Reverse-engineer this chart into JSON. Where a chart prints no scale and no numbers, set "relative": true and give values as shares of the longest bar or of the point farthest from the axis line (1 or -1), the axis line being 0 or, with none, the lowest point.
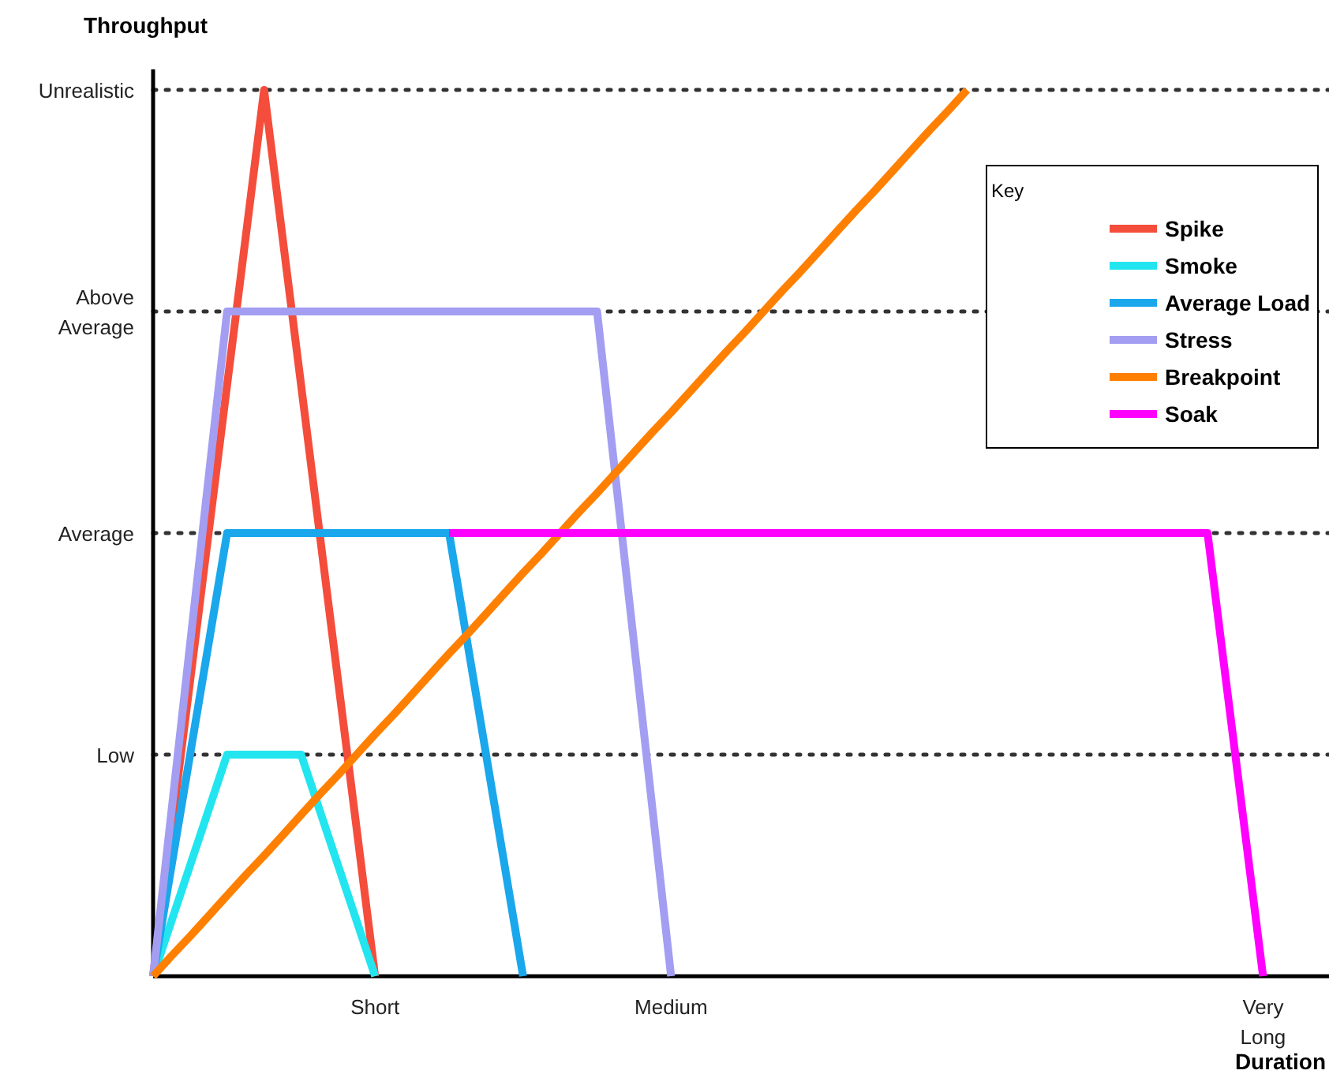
{
  "chart_data": {
    "type": "line",
    "relative": true,
    "xlabel": "Duration",
    "ylabel": "Throughput",
    "legend_title": "Key",
    "legend": "top right",
    "line_style": "solid",
    "categories": [
      null,
      null,
      null,
      null,
      null,
      null,
      null,
      null,
      null,
      null,
      null,
      null,
      "Short",
      null,
      null,
      null,
      null,
      null,
      null,
      null,
      null,
      null,
      null,
      null,
      null,
      null,
      null,
      null,
      "Medium",
      null,
      null,
      null,
      null,
      null,
      null,
      null,
      null,
      null,
      null,
      null,
      null,
      null,
      null,
      null,
      null,
      null,
      null,
      null,
      null,
      null,
      null,
      null,
      null,
      null,
      null,
      null,
      null,
      null,
      null,
      null,
      "Very Long"
    ],
    "ref_lines": [
      {
        "axis": "y",
        "value": 0.25,
        "label": "Low",
        "line_style": "dotted"
      },
      {
        "axis": "y",
        "value": 0.5,
        "label": "Average",
        "line_style": "dotted"
      },
      {
        "axis": "y",
        "value": 0.75,
        "label": "Above Average",
        "line_style": "dotted"
      },
      {
        "axis": "y",
        "value": 1,
        "label": "Unrealistic",
        "line_style": "dotted"
      }
    ],
    "series": [
      {
        "name": "Spike",
        "color": "#f44d3c",
        "values": [
          0,
          0.167,
          0.333,
          0.5,
          0.667,
          0.833,
          1,
          0.833,
          0.667,
          0.5,
          0.333,
          0.167,
          0,
          null,
          null,
          null,
          null,
          null,
          null,
          null,
          null,
          null,
          null,
          null,
          null,
          null,
          null,
          null,
          null,
          null,
          null,
          null,
          null,
          null,
          null,
          null,
          null,
          null,
          null,
          null,
          null,
          null,
          null,
          null,
          null,
          null,
          null,
          null,
          null,
          null,
          null,
          null,
          null,
          null,
          null,
          null,
          null,
          null,
          null,
          null,
          null
        ]
      },
      {
        "name": "Smoke",
        "color": "#22e5ef",
        "values": [
          0,
          0.0625,
          0.125,
          0.1875,
          0.25,
          0.25,
          0.25,
          0.25,
          0.25,
          0.1875,
          0.125,
          0.0625,
          0,
          null,
          null,
          null,
          null,
          null,
          null,
          null,
          null,
          null,
          null,
          null,
          null,
          null,
          null,
          null,
          null,
          null,
          null,
          null,
          null,
          null,
          null,
          null,
          null,
          null,
          null,
          null,
          null,
          null,
          null,
          null,
          null,
          null,
          null,
          null,
          null,
          null,
          null,
          null,
          null,
          null,
          null,
          null,
          null,
          null,
          null,
          null,
          null
        ]
      },
      {
        "name": "Average Load",
        "color": "#1aa7ec",
        "values": [
          0,
          0.125,
          0.25,
          0.375,
          0.5,
          0.5,
          0.5,
          0.5,
          0.5,
          0.5,
          0.5,
          0.5,
          0.5,
          0.5,
          0.5,
          0.5,
          0.5,
          0.375,
          0.25,
          0.125,
          0,
          null,
          null,
          null,
          null,
          null,
          null,
          null,
          null,
          null,
          null,
          null,
          null,
          null,
          null,
          null,
          null,
          null,
          null,
          null,
          null,
          null,
          null,
          null,
          null,
          null,
          null,
          null,
          null,
          null,
          null,
          null,
          null,
          null,
          null,
          null,
          null,
          null,
          null,
          null,
          null
        ]
      },
      {
        "name": "Stress",
        "color": "#a39ef2",
        "values": [
          0,
          0.1875,
          0.375,
          0.5625,
          0.75,
          0.75,
          0.75,
          0.75,
          0.75,
          0.75,
          0.75,
          0.75,
          0.75,
          0.75,
          0.75,
          0.75,
          0.75,
          0.75,
          0.75,
          0.75,
          0.75,
          0.75,
          0.75,
          0.75,
          0.75,
          0.5625,
          0.375,
          0.1875,
          0,
          null,
          null,
          null,
          null,
          null,
          null,
          null,
          null,
          null,
          null,
          null,
          null,
          null,
          null,
          null,
          null,
          null,
          null,
          null,
          null,
          null,
          null,
          null,
          null,
          null,
          null,
          null,
          null,
          null,
          null,
          null,
          null
        ]
      },
      {
        "name": "Breakpoint",
        "color": "#ff8000",
        "values": [
          0,
          0.023,
          0.045,
          0.068,
          0.091,
          0.114,
          0.136,
          0.159,
          0.182,
          0.205,
          0.227,
          0.25,
          0.273,
          0.295,
          0.318,
          0.341,
          0.364,
          0.386,
          0.409,
          0.432,
          0.455,
          0.477,
          0.5,
          0.523,
          0.545,
          0.568,
          0.591,
          0.614,
          0.636,
          0.659,
          0.682,
          0.705,
          0.727,
          0.75,
          0.773,
          0.795,
          0.818,
          0.841,
          0.864,
          0.886,
          0.909,
          0.932,
          0.955,
          0.977,
          1,
          null,
          null,
          null,
          null,
          null,
          null,
          null,
          null,
          null,
          null,
          null,
          null,
          null,
          null,
          null,
          null
        ]
      },
      {
        "name": "Soak",
        "color": "#ff00ff",
        "values": [
          null,
          null,
          null,
          null,
          null,
          null,
          null,
          null,
          null,
          null,
          null,
          null,
          null,
          null,
          null,
          null,
          0.5,
          0.5,
          0.5,
          0.5,
          0.5,
          0.5,
          0.5,
          0.5,
          0.5,
          0.5,
          0.5,
          0.5,
          0.5,
          0.5,
          0.5,
          0.5,
          0.5,
          0.5,
          0.5,
          0.5,
          0.5,
          0.5,
          0.5,
          0.5,
          0.5,
          0.5,
          0.5,
          0.5,
          0.5,
          0.5,
          0.5,
          0.5,
          0.5,
          0.5,
          0.5,
          0.5,
          0.5,
          0.5,
          0.5,
          0.5,
          0.5,
          0.5,
          0.333,
          0.167,
          0
        ]
      }
    ]
  }
}
